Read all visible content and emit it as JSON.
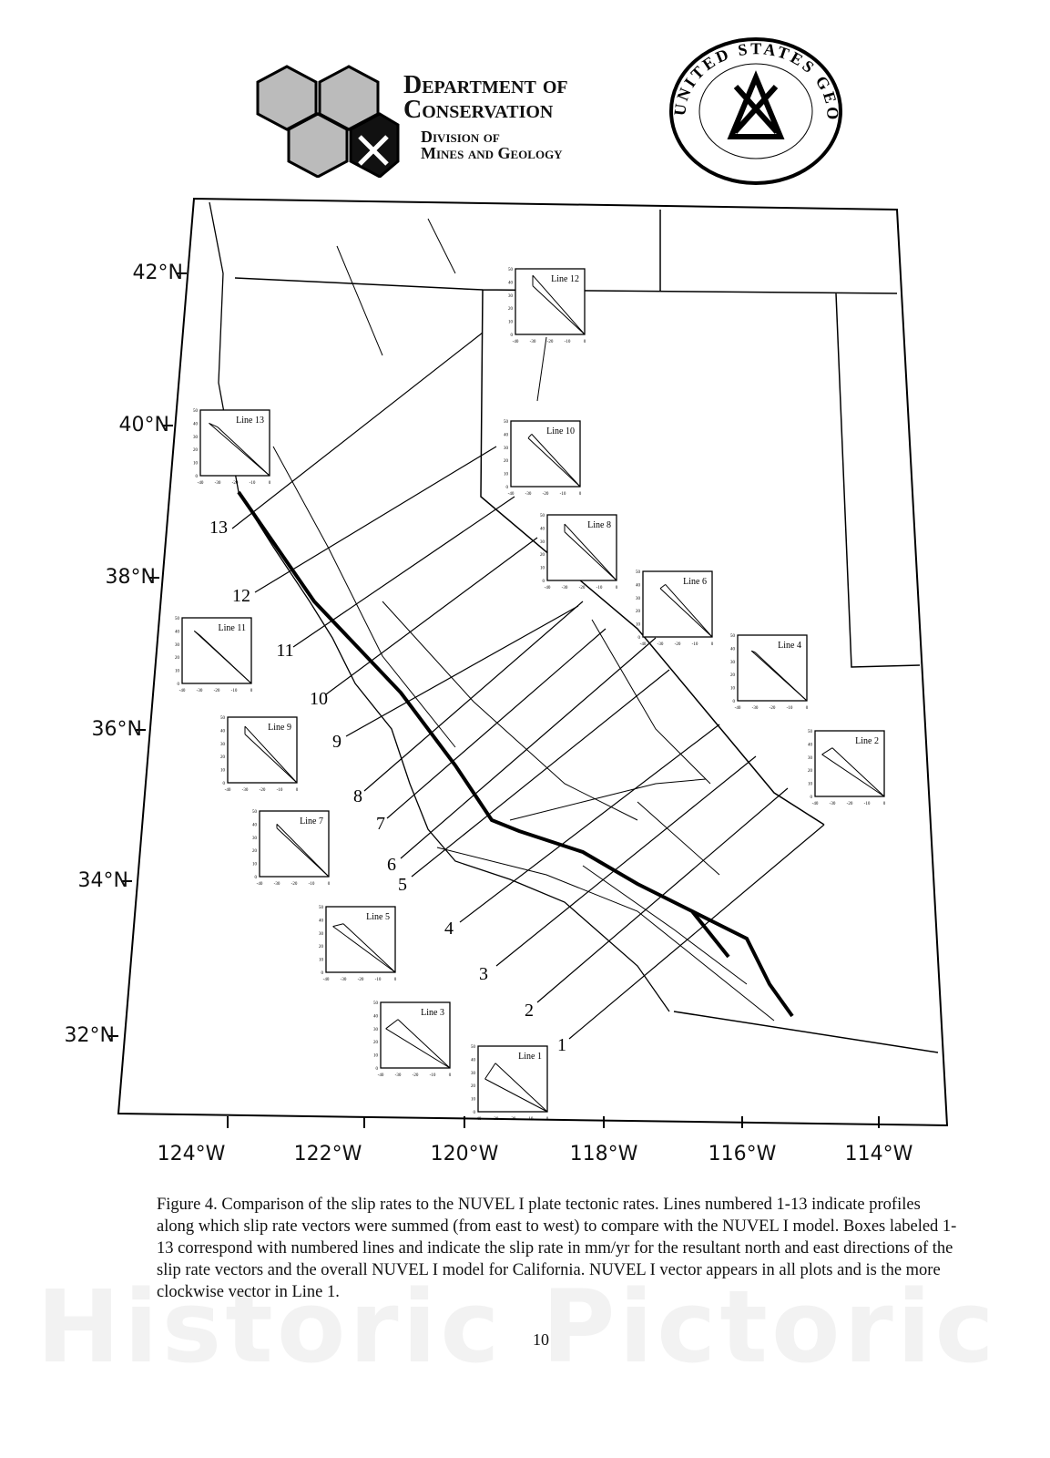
{
  "header": {
    "dept_line1": "Department of",
    "dept_line2": "Conservation",
    "division_line1": "Division of",
    "division_line2": "Mines and Geology",
    "usgs_seal_text": "United States Geological Survey"
  },
  "map": {
    "latitude_labels": [
      "42°N",
      "40°N",
      "38°N",
      "36°N",
      "34°N",
      "32°N"
    ],
    "longitude_labels": [
      "124°W",
      "122°W",
      "120°W",
      "118°W",
      "116°W",
      "114°W"
    ],
    "profile_line_labels": [
      "1",
      "2",
      "3",
      "4",
      "5",
      "6",
      "7",
      "8",
      "9",
      "10",
      "11",
      "12",
      "13"
    ],
    "insets": {
      "titles": [
        "Line 1",
        "Line 2",
        "Line 3",
        "Line 4",
        "Line 5",
        "Line 6",
        "Line 7",
        "Line 8",
        "Line 9",
        "Line 10",
        "Line 11",
        "Line 12",
        "Line 13"
      ],
      "y_ticks": [
        "0",
        "10",
        "20",
        "30",
        "40",
        "50"
      ],
      "x_ticks": [
        "-40",
        "-30",
        "-20",
        "-10",
        "0"
      ],
      "units": "mm/yr"
    }
  },
  "caption": "Figure 4. Comparison of the slip rates to the NUVEL I plate tectonic rates. Lines numbered 1-13 indicate profiles along which slip rate vectors were summed (from east to west) to compare with the NUVEL I model. Boxes labeled 1-13 correspond with numbered lines and indicate the slip rate in mm/yr for the resultant north and east directions of the slip rate vectors and the overall NUVEL I model for California. NUVEL I vector appears in all plots and is the more clockwise vector in Line 1.",
  "page_number": "10",
  "watermark": "Historic Pictoric ®"
}
